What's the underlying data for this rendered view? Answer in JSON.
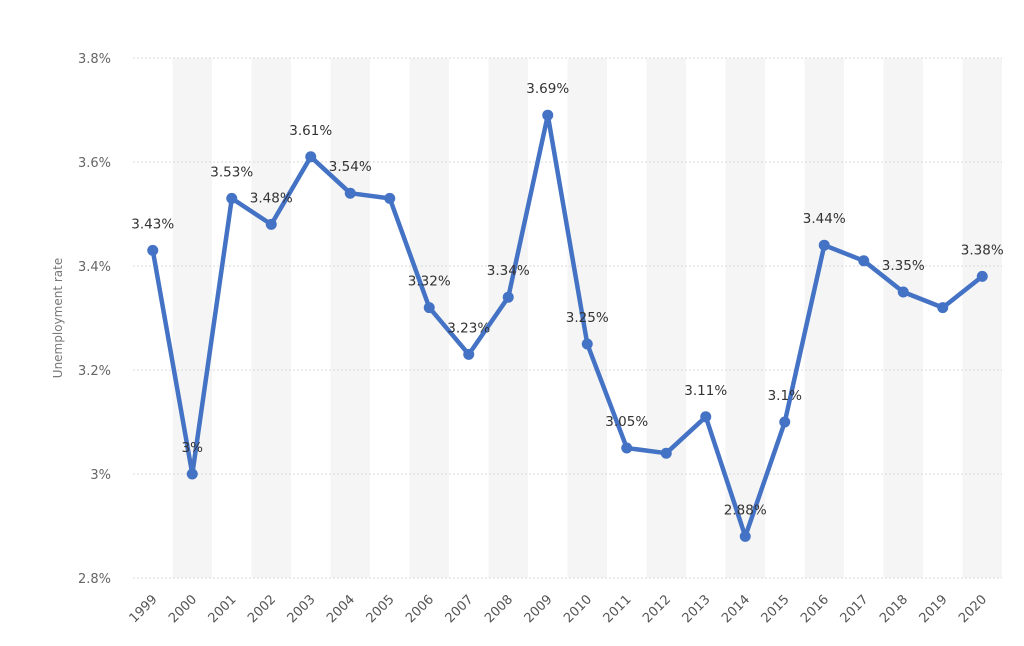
{
  "chart_data": {
    "type": "line",
    "title": "",
    "xlabel": "",
    "ylabel": "Unemployment rate",
    "categories": [
      "1999",
      "2000",
      "2001",
      "2002",
      "2003",
      "2004",
      "2005",
      "2006",
      "2007",
      "2008",
      "2009",
      "2010",
      "2011",
      "2012",
      "2013",
      "2014",
      "2015",
      "2016",
      "2017",
      "2018",
      "2019",
      "2020"
    ],
    "values": [
      3.43,
      3.0,
      3.53,
      3.48,
      3.61,
      3.54,
      3.53,
      3.32,
      3.23,
      3.34,
      3.69,
      3.25,
      3.05,
      3.04,
      3.11,
      2.88,
      3.1,
      3.44,
      3.41,
      3.35,
      3.32,
      3.38
    ],
    "data_labels": [
      "3.43%",
      "3%",
      "3.53%",
      "3.48%",
      "3.61%",
      "3.54%",
      "",
      "3.32%",
      "3.23%",
      "3.34%",
      "3.69%",
      "3.25%",
      "3.05%",
      "",
      "3.11%",
      "2.88%",
      "3.1%",
      "3.44%",
      "",
      "3.35%",
      "",
      "3.38%"
    ],
    "y_ticks": [
      2.8,
      3.0,
      3.2,
      3.4,
      3.6,
      3.8
    ],
    "y_tick_labels": [
      "2.8%",
      "3%",
      "3.2%",
      "3.4%",
      "3.6%",
      "3.8%"
    ],
    "ylim": [
      2.8,
      3.8
    ],
    "grid": true,
    "alternating_column_bands": true,
    "line_color": "#4472c4",
    "band_color": "#f5f5f5",
    "grid_color": "#d9d9d9"
  }
}
